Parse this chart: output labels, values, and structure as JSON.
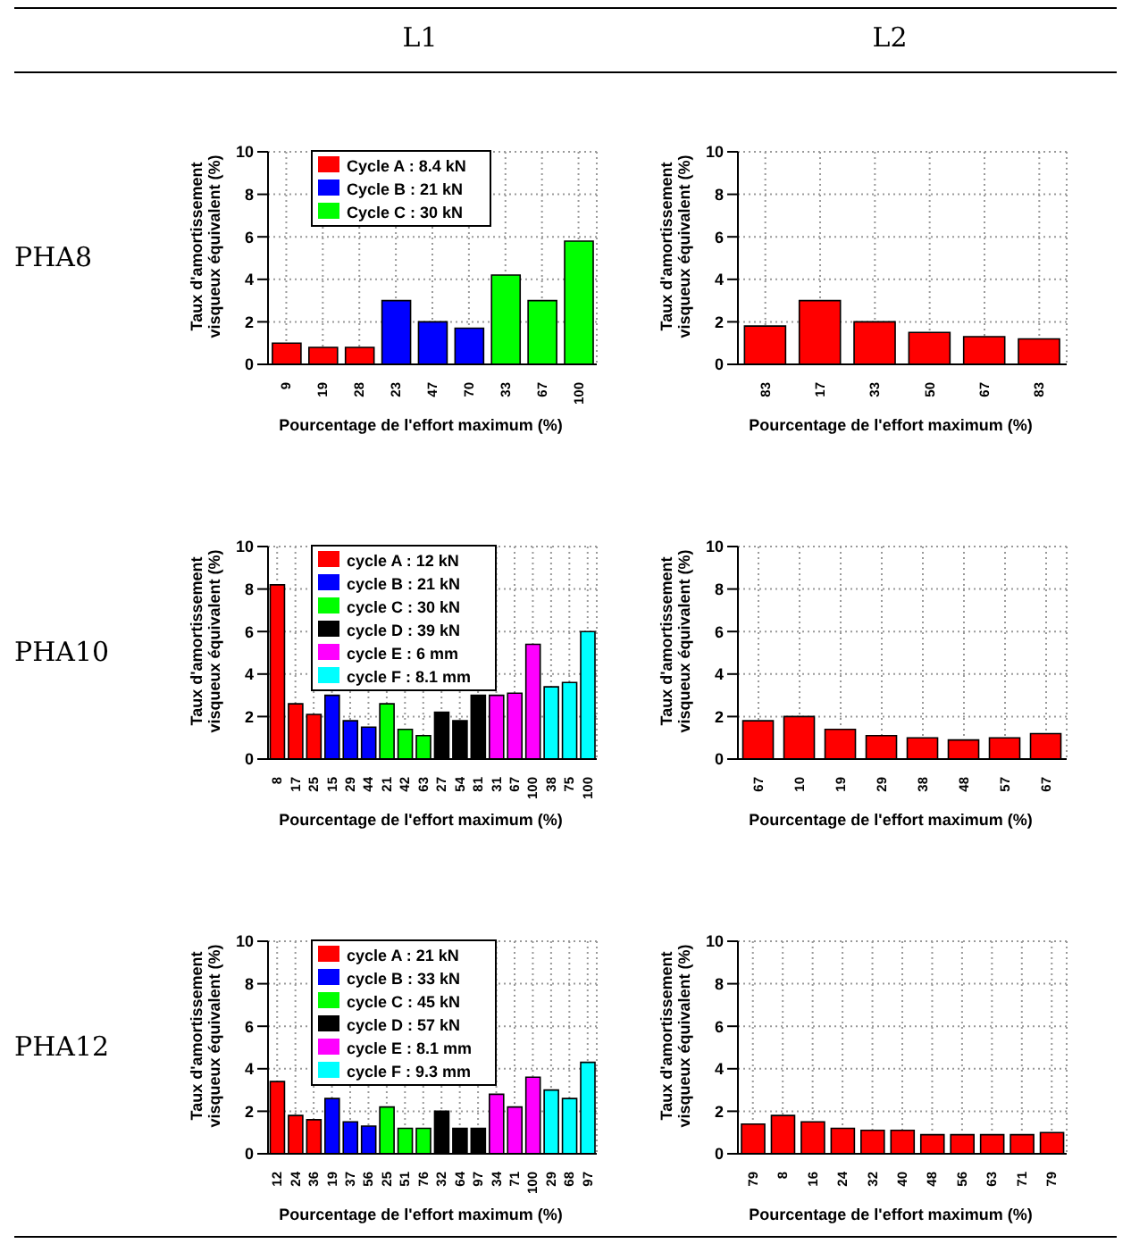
{
  "chart_data": [
    {
      "type": "bar",
      "title": "L1",
      "annotations": [
        "PHA8"
      ],
      "xlabel": "Pourcentage de l'effort maximum (%)",
      "ylabel": "Taux d'amortissement visqueux équivalent (%)",
      "categories": [
        "9",
        "19",
        "28",
        "23",
        "47",
        "70",
        "33",
        "67",
        "100"
      ],
      "series": [
        {
          "name": "Cycle A : 8.4 kN",
          "color": "#ff0000",
          "values": [
            1.0,
            0.8,
            0.8,
            null,
            null,
            null,
            null,
            null,
            null
          ]
        },
        {
          "name": "Cycle B : 21 kN",
          "color": "#0000ff",
          "values": [
            null,
            null,
            null,
            3.0,
            2.0,
            1.7,
            null,
            null,
            null
          ]
        },
        {
          "name": "Cycle C : 30 kN",
          "color": "#00ff00",
          "values": [
            null,
            null,
            null,
            null,
            null,
            null,
            4.2,
            3.0,
            5.8
          ]
        }
      ],
      "ylim": [
        0,
        10
      ],
      "yticks": [
        0,
        2,
        4,
        6,
        8,
        10
      ],
      "grid": true,
      "legend": "top"
    },
    {
      "type": "bar",
      "title": "L2",
      "xlabel": "Pourcentage de l'effort maximum (%)",
      "ylabel": "Taux d'amortissement visqueux équivalent (%)",
      "categories": [
        "83",
        "17",
        "33",
        "50",
        "67",
        "83"
      ],
      "series": [
        {
          "color": "#ff0000",
          "values": [
            1.8,
            3.0,
            2.0,
            1.5,
            1.3,
            1.2
          ]
        }
      ],
      "ylim": [
        0,
        10
      ],
      "yticks": [
        0,
        2,
        4,
        6,
        8,
        10
      ],
      "grid": true
    },
    {
      "type": "bar",
      "annotations": [
        "PHA10"
      ],
      "xlabel": "Pourcentage de l'effort maximum (%)",
      "ylabel": "Taux d'amortissement visqueux équivalent (%)",
      "categories": [
        "8",
        "17",
        "25",
        "15",
        "29",
        "44",
        "21",
        "42",
        "63",
        "27",
        "54",
        "81",
        "31",
        "67",
        "100",
        "38",
        "75",
        "100"
      ],
      "series": [
        {
          "name": "cycle A : 12 kN",
          "color": "#ff0000",
          "values": [
            8.2,
            2.6,
            2.1,
            null,
            null,
            null,
            null,
            null,
            null,
            null,
            null,
            null,
            null,
            null,
            null,
            null,
            null,
            null
          ]
        },
        {
          "name": "cycle B : 21 kN",
          "color": "#0000ff",
          "values": [
            null,
            null,
            null,
            3.0,
            1.8,
            1.5,
            null,
            null,
            null,
            null,
            null,
            null,
            null,
            null,
            null,
            null,
            null,
            null
          ]
        },
        {
          "name": "cycle C : 30 kN",
          "color": "#00ff00",
          "values": [
            null,
            null,
            null,
            null,
            null,
            null,
            2.6,
            1.4,
            1.1,
            null,
            null,
            null,
            null,
            null,
            null,
            null,
            null,
            null
          ]
        },
        {
          "name": "cycle D : 39 kN",
          "color": "#000000",
          "values": [
            null,
            null,
            null,
            null,
            null,
            null,
            null,
            null,
            null,
            2.2,
            1.8,
            3.0,
            null,
            null,
            null,
            null,
            null,
            null
          ]
        },
        {
          "name": "cycle E : 6 mm",
          "color": "#ff00ff",
          "values": [
            null,
            null,
            null,
            null,
            null,
            null,
            null,
            null,
            null,
            null,
            null,
            null,
            3.0,
            3.1,
            5.4,
            null,
            null,
            null
          ]
        },
        {
          "name": "cycle F : 8.1 mm",
          "color": "#00ffff",
          "values": [
            null,
            null,
            null,
            null,
            null,
            null,
            null,
            null,
            null,
            null,
            null,
            null,
            null,
            null,
            null,
            3.4,
            3.6,
            6.0
          ]
        }
      ],
      "ylim": [
        0,
        10
      ],
      "yticks": [
        0,
        2,
        4,
        6,
        8,
        10
      ],
      "grid": true,
      "legend": "top"
    },
    {
      "type": "bar",
      "xlabel": "Pourcentage de l'effort maximum (%)",
      "ylabel": "Taux d'amortissement visqueux équivalent (%)",
      "categories": [
        "67",
        "10",
        "19",
        "29",
        "38",
        "48",
        "57",
        "67"
      ],
      "series": [
        {
          "color": "#ff0000",
          "values": [
            1.8,
            2.0,
            1.4,
            1.1,
            1.0,
            0.9,
            1.0,
            1.2
          ]
        }
      ],
      "ylim": [
        0,
        10
      ],
      "yticks": [
        0,
        2,
        4,
        6,
        8,
        10
      ],
      "grid": true
    },
    {
      "type": "bar",
      "annotations": [
        "PHA12"
      ],
      "xlabel": "Pourcentage de l'effort maximum (%)",
      "ylabel": "Taux d'amortissement visqueux équivalent (%)",
      "categories": [
        "12",
        "24",
        "36",
        "19",
        "37",
        "56",
        "25",
        "51",
        "76",
        "32",
        "64",
        "97",
        "34",
        "71",
        "100",
        "29",
        "68",
        "97"
      ],
      "series": [
        {
          "name": "cycle A : 21 kN",
          "color": "#ff0000",
          "values": [
            3.4,
            1.8,
            1.6,
            null,
            null,
            null,
            null,
            null,
            null,
            null,
            null,
            null,
            null,
            null,
            null,
            null,
            null,
            null
          ]
        },
        {
          "name": "cycle B : 33 kN",
          "color": "#0000ff",
          "values": [
            null,
            null,
            null,
            2.6,
            1.5,
            1.3,
            null,
            null,
            null,
            null,
            null,
            null,
            null,
            null,
            null,
            null,
            null,
            null
          ]
        },
        {
          "name": "cycle C : 45 kN",
          "color": "#00ff00",
          "values": [
            null,
            null,
            null,
            null,
            null,
            null,
            2.2,
            1.2,
            1.2,
            null,
            null,
            null,
            null,
            null,
            null,
            null,
            null,
            null
          ]
        },
        {
          "name": "cycle D : 57 kN",
          "color": "#000000",
          "values": [
            null,
            null,
            null,
            null,
            null,
            null,
            null,
            null,
            null,
            2.0,
            1.2,
            1.2,
            null,
            null,
            null,
            null,
            null,
            null
          ]
        },
        {
          "name": "cycle E : 8.1 mm",
          "color": "#ff00ff",
          "values": [
            null,
            null,
            null,
            null,
            null,
            null,
            null,
            null,
            null,
            null,
            null,
            null,
            2.8,
            2.2,
            3.6,
            null,
            null,
            null
          ]
        },
        {
          "name": "cycle F : 9.3 mm",
          "color": "#00ffff",
          "values": [
            null,
            null,
            null,
            null,
            null,
            null,
            null,
            null,
            null,
            null,
            null,
            null,
            null,
            null,
            null,
            3.0,
            2.6,
            4.3
          ]
        }
      ],
      "ylim": [
        0,
        10
      ],
      "yticks": [
        0,
        2,
        4,
        6,
        8,
        10
      ],
      "grid": true,
      "legend": "top"
    },
    {
      "type": "bar",
      "xlabel": "Pourcentage de l'effort maximum (%)",
      "ylabel": "Taux d'amortissement visqueux équivalent (%)",
      "categories": [
        "79",
        "8",
        "16",
        "24",
        "32",
        "40",
        "48",
        "56",
        "63",
        "71",
        "79"
      ],
      "series": [
        {
          "color": "#ff0000",
          "values": [
            1.4,
            1.8,
            1.5,
            1.2,
            1.1,
            1.1,
            0.9,
            0.9,
            0.9,
            0.9,
            1.0
          ]
        }
      ],
      "ylim": [
        0,
        10
      ],
      "yticks": [
        0,
        2,
        4,
        6,
        8,
        10
      ],
      "grid": true
    }
  ]
}
